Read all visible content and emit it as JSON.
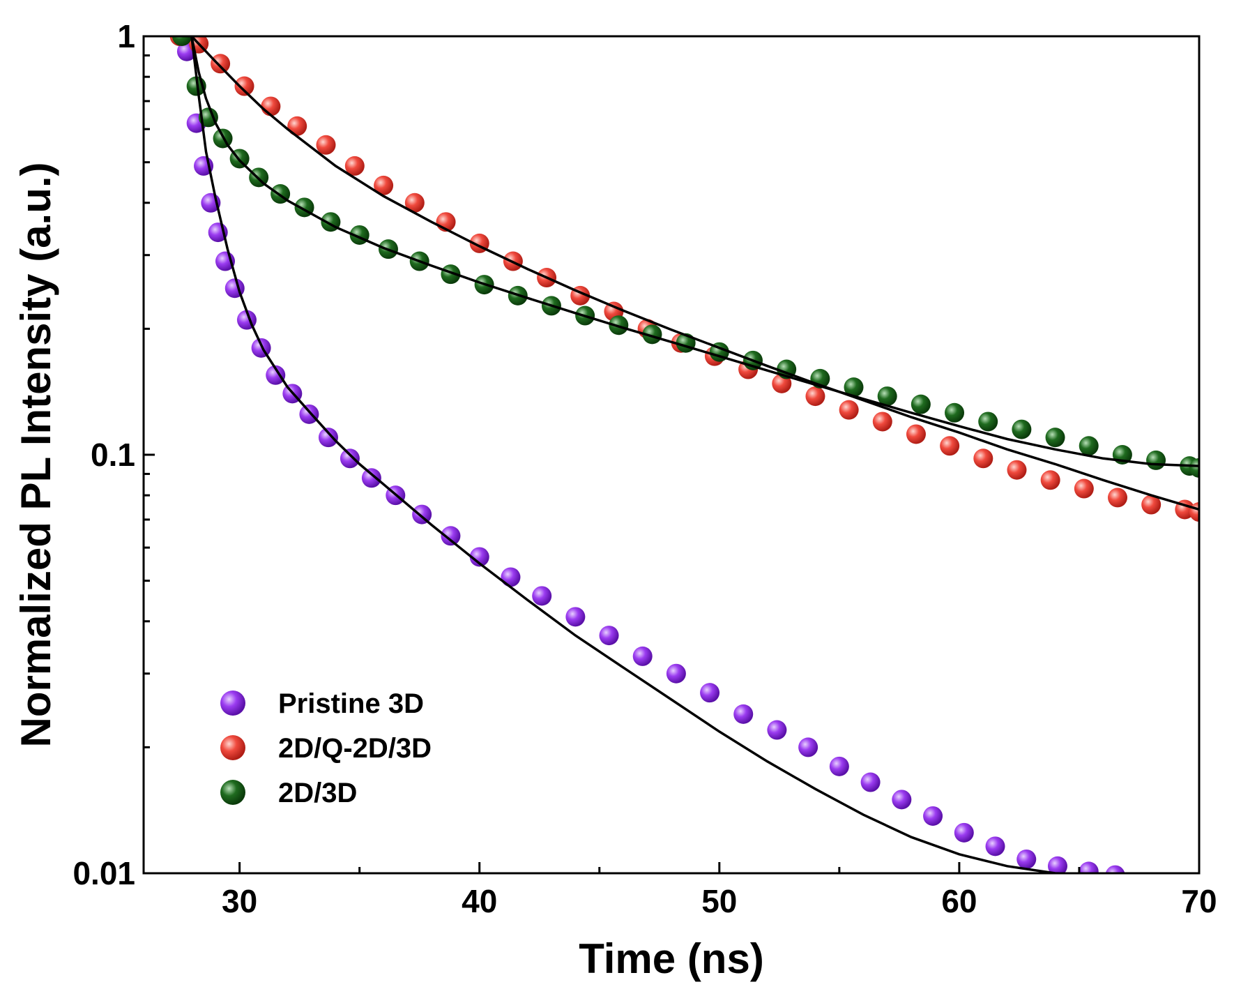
{
  "chart_data": {
    "type": "scatter",
    "xlabel": "Time (ns)",
    "ylabel": "Normalized PL Intensity (a.u.)",
    "xlim": [
      26,
      70
    ],
    "ylim": [
      0.01,
      1
    ],
    "yscale": "log",
    "xticks": [
      30,
      40,
      50,
      60,
      70
    ],
    "yticks": [
      {
        "value": 0.01,
        "label": "0.01"
      },
      {
        "value": 0.1,
        "label": "0.1"
      },
      {
        "value": 1,
        "label": "1"
      }
    ],
    "legend_position": "bottom-left",
    "series": [
      {
        "name": "Pristine 3D",
        "color": "#8a2be2",
        "x": [
          27.8,
          28.2,
          28.5,
          28.8,
          29.1,
          29.4,
          29.8,
          30.3,
          30.9,
          31.5,
          32.2,
          32.9,
          33.7,
          34.6,
          35.5,
          36.5,
          37.6,
          38.8,
          40.0,
          41.3,
          42.6,
          44.0,
          45.4,
          46.8,
          48.2,
          49.6,
          51.0,
          52.4,
          53.7,
          55.0,
          56.3,
          57.6,
          58.9,
          60.2,
          61.5,
          62.8,
          64.1,
          65.4,
          66.5
        ],
        "y": [
          0.92,
          0.62,
          0.49,
          0.4,
          0.34,
          0.29,
          0.25,
          0.21,
          0.18,
          0.155,
          0.14,
          0.125,
          0.11,
          0.098,
          0.088,
          0.08,
          0.072,
          0.064,
          0.057,
          0.051,
          0.046,
          0.041,
          0.037,
          0.033,
          0.03,
          0.027,
          0.024,
          0.022,
          0.02,
          0.018,
          0.0165,
          0.015,
          0.0137,
          0.0125,
          0.0116,
          0.0108,
          0.0104,
          0.0101,
          0.0099
        ]
      },
      {
        "name": "2D/Q-2D/3D",
        "color": "#f04a3e",
        "x": [
          27.5,
          28.3,
          29.2,
          30.2,
          31.3,
          32.4,
          33.6,
          34.8,
          36.0,
          37.3,
          38.6,
          40.0,
          41.4,
          42.8,
          44.2,
          45.6,
          47.0,
          48.4,
          49.8,
          51.2,
          52.6,
          54.0,
          55.4,
          56.8,
          58.2,
          59.6,
          61.0,
          62.4,
          63.8,
          65.2,
          66.6,
          68.0,
          69.4,
          70.0
        ],
        "y": [
          1.0,
          0.96,
          0.86,
          0.76,
          0.68,
          0.61,
          0.55,
          0.49,
          0.44,
          0.4,
          0.36,
          0.32,
          0.29,
          0.265,
          0.24,
          0.22,
          0.2,
          0.185,
          0.172,
          0.16,
          0.148,
          0.138,
          0.128,
          0.12,
          0.112,
          0.105,
          0.098,
          0.092,
          0.087,
          0.083,
          0.079,
          0.076,
          0.074,
          0.073
        ]
      },
      {
        "name": "2D/3D",
        "color": "#1f6b1f",
        "x": [
          27.6,
          28.2,
          28.7,
          29.3,
          30.0,
          30.8,
          31.7,
          32.7,
          33.8,
          35.0,
          36.2,
          37.5,
          38.8,
          40.2,
          41.6,
          43.0,
          44.4,
          45.8,
          47.2,
          48.6,
          50.0,
          51.4,
          52.8,
          54.2,
          55.6,
          57.0,
          58.4,
          59.8,
          61.2,
          62.6,
          64.0,
          65.4,
          66.8,
          68.2,
          69.6,
          70.0
        ],
        "y": [
          1.0,
          0.76,
          0.64,
          0.57,
          0.51,
          0.46,
          0.42,
          0.39,
          0.36,
          0.335,
          0.31,
          0.29,
          0.27,
          0.255,
          0.24,
          0.227,
          0.215,
          0.204,
          0.194,
          0.185,
          0.176,
          0.168,
          0.16,
          0.152,
          0.145,
          0.138,
          0.132,
          0.126,
          0.12,
          0.115,
          0.11,
          0.105,
          0.1,
          0.097,
          0.094,
          0.093
        ]
      }
    ],
    "fits": [
      {
        "name": "Pristine 3D fit",
        "x": [
          28.0,
          28.3,
          28.6,
          29.0,
          29.5,
          30.0,
          30.5,
          31.0,
          32.0,
          33.0,
          34.0,
          35.0,
          36.0,
          38.0,
          40.0,
          42.0,
          44.0,
          46.0,
          48.0,
          50.0,
          52.0,
          54.0,
          56.0,
          58.0,
          60.0,
          62.0,
          64.0,
          66.0
        ],
        "y": [
          1.0,
          0.72,
          0.53,
          0.41,
          0.31,
          0.245,
          0.205,
          0.178,
          0.145,
          0.125,
          0.108,
          0.095,
          0.085,
          0.068,
          0.055,
          0.045,
          0.037,
          0.031,
          0.026,
          0.0218,
          0.0185,
          0.0159,
          0.0138,
          0.0122,
          0.0111,
          0.0104,
          0.01,
          0.0099
        ]
      },
      {
        "name": "2D/Q-2D/3D fit",
        "x": [
          28.0,
          29.0,
          30.0,
          31.0,
          32.0,
          34.0,
          36.0,
          38.0,
          40.0,
          42.0,
          44.0,
          46.0,
          48.0,
          50.0,
          52.0,
          54.0,
          56.0,
          58.0,
          60.0,
          62.0,
          64.0,
          66.0,
          68.0,
          70.0
        ],
        "y": [
          1.0,
          0.87,
          0.76,
          0.67,
          0.6,
          0.49,
          0.415,
          0.36,
          0.315,
          0.278,
          0.247,
          0.221,
          0.199,
          0.18,
          0.163,
          0.148,
          0.135,
          0.123,
          0.113,
          0.103,
          0.095,
          0.087,
          0.08,
          0.074
        ]
      },
      {
        "name": "2D/3D fit",
        "x": [
          28.0,
          28.3,
          28.6,
          29.0,
          29.5,
          30.0,
          31.0,
          32.0,
          34.0,
          36.0,
          38.0,
          40.0,
          42.0,
          44.0,
          46.0,
          48.0,
          50.0,
          52.0,
          54.0,
          56.0,
          58.0,
          60.0,
          62.0,
          64.0,
          66.0,
          68.0,
          70.0
        ],
        "y": [
          1.0,
          0.82,
          0.71,
          0.62,
          0.55,
          0.505,
          0.445,
          0.405,
          0.35,
          0.312,
          0.283,
          0.258,
          0.237,
          0.218,
          0.201,
          0.186,
          0.172,
          0.159,
          0.147,
          0.136,
          0.126,
          0.117,
          0.109,
          0.103,
          0.098,
          0.095,
          0.094
        ]
      }
    ]
  }
}
